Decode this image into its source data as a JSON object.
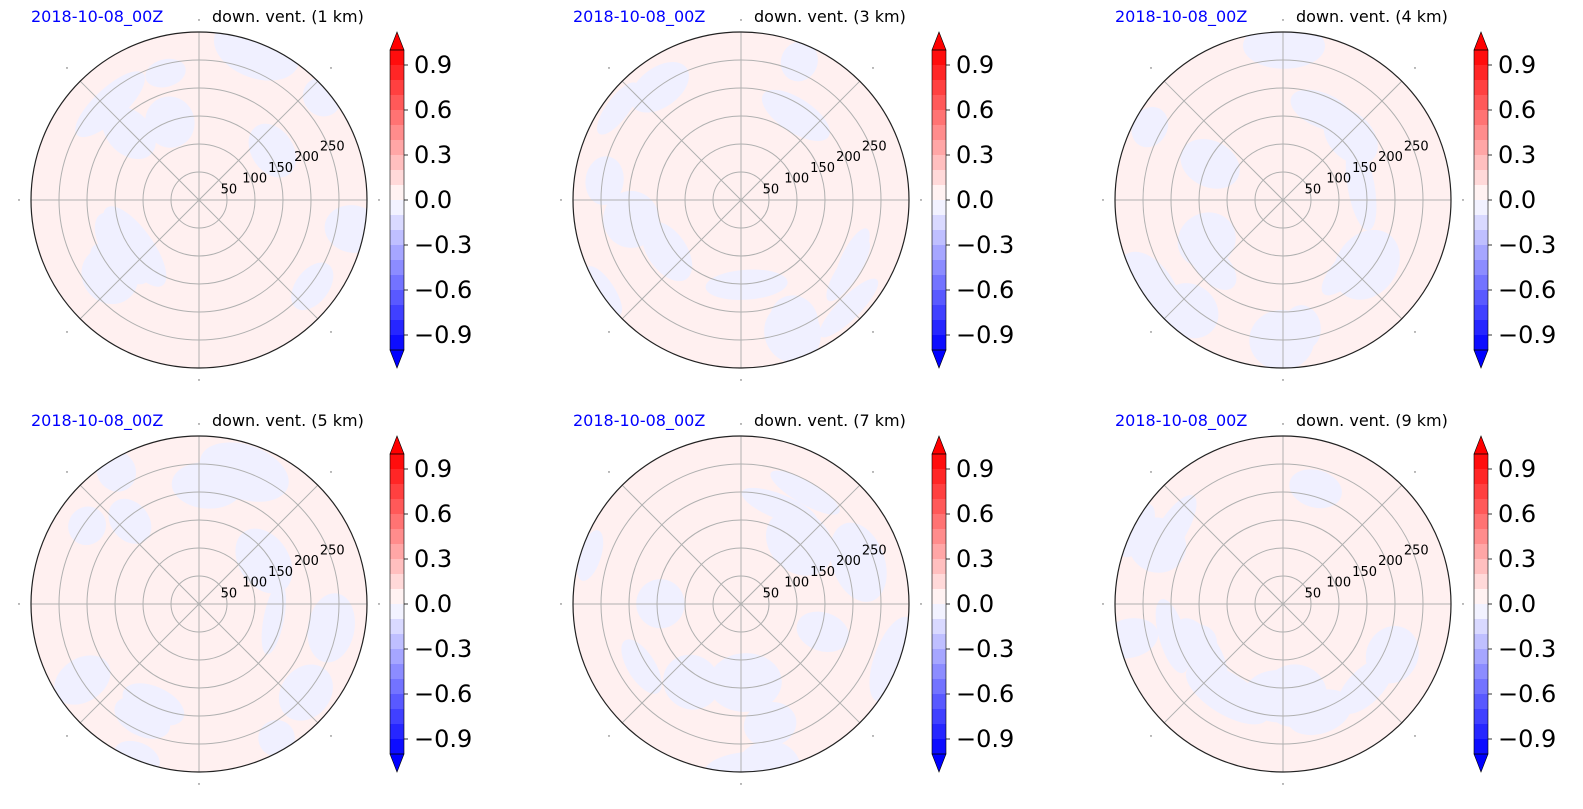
{
  "chart_data": [
    {
      "type": "heatmap",
      "projection": "polar",
      "date": "2018-10-08_00Z",
      "title": "down. vent. (1 km)",
      "r_ticks": [
        "50",
        "100",
        "150",
        "200",
        "250"
      ],
      "r_values": [
        50,
        100,
        150,
        200,
        250
      ],
      "r_max": 300,
      "grid": true,
      "angular_gridlines_deg": [
        0,
        45,
        90,
        135,
        180,
        225,
        270,
        315
      ],
      "colorbar": {
        "min": -1.0,
        "max": 1.0,
        "extend": "both",
        "ticks": [
          "0.9",
          "0.6",
          "0.3",
          "0.0",
          "−0.3",
          "−0.6",
          "−0.9"
        ],
        "tick_values": [
          0.9,
          0.6,
          0.3,
          0.0,
          -0.3,
          -0.6,
          -0.9
        ]
      },
      "field_description_value_range": [
        -0.05,
        0.05
      ]
    },
    {
      "type": "heatmap",
      "projection": "polar",
      "date": "2018-10-08_00Z",
      "title": "down. vent. (3 km)",
      "r_ticks": [
        "50",
        "100",
        "150",
        "200",
        "250"
      ],
      "r_values": [
        50,
        100,
        150,
        200,
        250
      ],
      "r_max": 300,
      "grid": true,
      "angular_gridlines_deg": [
        0,
        45,
        90,
        135,
        180,
        225,
        270,
        315
      ],
      "colorbar": {
        "min": -1.0,
        "max": 1.0,
        "extend": "both",
        "ticks": [
          "0.9",
          "0.6",
          "0.3",
          "0.0",
          "−0.3",
          "−0.6",
          "−0.9"
        ],
        "tick_values": [
          0.9,
          0.6,
          0.3,
          0.0,
          -0.3,
          -0.6,
          -0.9
        ]
      },
      "field_description_value_range": [
        -0.05,
        0.05
      ]
    },
    {
      "type": "heatmap",
      "projection": "polar",
      "date": "2018-10-08_00Z",
      "title": "down. vent. (4 km)",
      "r_ticks": [
        "50",
        "100",
        "150",
        "200",
        "250"
      ],
      "r_values": [
        50,
        100,
        150,
        200,
        250
      ],
      "r_max": 300,
      "grid": true,
      "angular_gridlines_deg": [
        0,
        45,
        90,
        135,
        180,
        225,
        270,
        315
      ],
      "colorbar": {
        "min": -1.0,
        "max": 1.0,
        "extend": "both",
        "ticks": [
          "0.9",
          "0.6",
          "0.3",
          "0.0",
          "−0.3",
          "−0.6",
          "−0.9"
        ],
        "tick_values": [
          0.9,
          0.6,
          0.3,
          0.0,
          -0.3,
          -0.6,
          -0.9
        ]
      },
      "field_description_value_range": [
        -0.05,
        0.05
      ]
    },
    {
      "type": "heatmap",
      "projection": "polar",
      "date": "2018-10-08_00Z",
      "title": "down. vent. (5 km)",
      "r_ticks": [
        "50",
        "100",
        "150",
        "200",
        "250"
      ],
      "r_values": [
        50,
        100,
        150,
        200,
        250
      ],
      "r_max": 300,
      "grid": true,
      "angular_gridlines_deg": [
        0,
        45,
        90,
        135,
        180,
        225,
        270,
        315
      ],
      "colorbar": {
        "min": -1.0,
        "max": 1.0,
        "extend": "both",
        "ticks": [
          "0.9",
          "0.6",
          "0.3",
          "0.0",
          "−0.3",
          "−0.6",
          "−0.9"
        ],
        "tick_values": [
          0.9,
          0.6,
          0.3,
          0.0,
          -0.3,
          -0.6,
          -0.9
        ]
      },
      "field_description_value_range": [
        -0.05,
        0.05
      ]
    },
    {
      "type": "heatmap",
      "projection": "polar",
      "date": "2018-10-08_00Z",
      "title": "down. vent. (7 km)",
      "r_ticks": [
        "50",
        "100",
        "150",
        "200",
        "250"
      ],
      "r_values": [
        50,
        100,
        150,
        200,
        250
      ],
      "r_max": 300,
      "grid": true,
      "angular_gridlines_deg": [
        0,
        45,
        90,
        135,
        180,
        225,
        270,
        315
      ],
      "colorbar": {
        "min": -1.0,
        "max": 1.0,
        "extend": "both",
        "ticks": [
          "0.9",
          "0.6",
          "0.3",
          "0.0",
          "−0.3",
          "−0.6",
          "−0.9"
        ],
        "tick_values": [
          0.9,
          0.6,
          0.3,
          0.0,
          -0.3,
          -0.6,
          -0.9
        ]
      },
      "field_description_value_range": [
        -0.05,
        0.05
      ]
    },
    {
      "type": "heatmap",
      "projection": "polar",
      "date": "2018-10-08_00Z",
      "title": "down. vent. (9 km)",
      "r_ticks": [
        "50",
        "100",
        "150",
        "200",
        "250"
      ],
      "r_values": [
        50,
        100,
        150,
        200,
        250
      ],
      "r_max": 300,
      "grid": true,
      "angular_gridlines_deg": [
        0,
        45,
        90,
        135,
        180,
        225,
        270,
        315
      ],
      "colorbar": {
        "min": -1.0,
        "max": 1.0,
        "extend": "both",
        "ticks": [
          "0.9",
          "0.6",
          "0.3",
          "0.0",
          "−0.3",
          "−0.6",
          "−0.9"
        ],
        "tick_values": [
          0.9,
          0.6,
          0.3,
          0.0,
          -0.3,
          -0.6,
          -0.9
        ]
      },
      "field_description_value_range": [
        -0.05,
        0.05
      ]
    }
  ],
  "colors": {
    "date_text": "#0000ff",
    "positive_light": "#fff0f0",
    "negative_light": "#f0f0ff",
    "grid": "#b0b0b0",
    "max": "#ff0000",
    "min": "#0000ff"
  }
}
